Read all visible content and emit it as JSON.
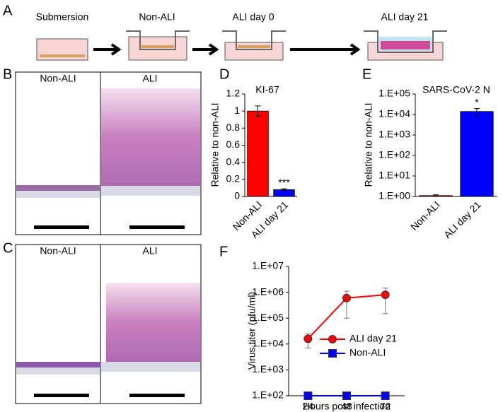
{
  "panel_labels": [
    "A",
    "B",
    "C",
    "D",
    "E",
    "F"
  ],
  "diagram": {
    "steps": [
      "Submersion",
      "Non-ALI",
      "ALI day 0",
      "ALI day 21"
    ]
  },
  "histology": [
    {
      "labels": [
        "Non-ALI",
        "ALI"
      ]
    },
    {
      "labels": [
        "Non-ALI",
        "ALI"
      ]
    }
  ],
  "chart_data": [
    {
      "type": "bar",
      "title": "KI-67",
      "y_label": "Relative to non-ALI",
      "categories": [
        "Non-ALI",
        "ALI day 21"
      ],
      "values": [
        1.0,
        0.08
      ],
      "errors": [
        0.06,
        0.01
      ],
      "colors": [
        "#ff0000",
        "#0000ff"
      ],
      "annotations": [
        null,
        "***"
      ],
      "ylim": [
        0,
        1.2
      ],
      "yticks": [
        0,
        0.2,
        0.4,
        0.6,
        0.8,
        1,
        1.2
      ],
      "log": false
    },
    {
      "type": "bar",
      "title": "SARS-CoV-2 N",
      "y_label": "Relative to non-ALI",
      "categories": [
        "Non-ALI",
        "ALI day 21"
      ],
      "values": [
        1.1,
        14000
      ],
      "errors": [
        0.1,
        5500
      ],
      "colors": [
        "#ff0000",
        "#0000ff"
      ],
      "annotations": [
        null,
        "*"
      ],
      "ylim": [
        1,
        100000
      ],
      "log": true,
      "yticks": [
        {
          "value": 1,
          "label": "1.E+00"
        },
        {
          "value": 10,
          "label": "1.E+01"
        },
        {
          "value": 100,
          "label": "1.E+02"
        },
        {
          "value": 1000,
          "label": "1.E+03"
        },
        {
          "value": 10000,
          "label": "1.E+04"
        },
        {
          "value": 100000,
          "label": "1.E+05"
        }
      ]
    },
    {
      "type": "line",
      "x_label": "Hours post infection",
      "y_label": "Virus titer (pfu/ml)",
      "x": [
        24,
        48,
        72
      ],
      "xlim": [
        12,
        84
      ],
      "xticks": [
        24,
        48,
        72
      ],
      "series": [
        {
          "name": "ALI day 21",
          "color": "#ff0000",
          "marker": "circle",
          "values": [
            16000,
            600000,
            800000
          ],
          "errors": [
            9000,
            500000,
            650000
          ]
        },
        {
          "name": "Non-ALI",
          "color": "#0000ff",
          "marker": "square",
          "values": [
            100,
            100,
            100
          ]
        }
      ],
      "ylim": [
        100,
        10000000
      ],
      "log": true,
      "legend": "lower right",
      "yticks": [
        {
          "value": 100,
          "label": "1.E+02"
        },
        {
          "value": 1000,
          "label": "1.E+03"
        },
        {
          "value": 10000,
          "label": "1.E+04"
        },
        {
          "value": 100000,
          "label": "1.E+05"
        },
        {
          "value": 1000000,
          "label": "1.E+06"
        },
        {
          "value": 10000000,
          "label": "1.E+07"
        }
      ]
    }
  ]
}
